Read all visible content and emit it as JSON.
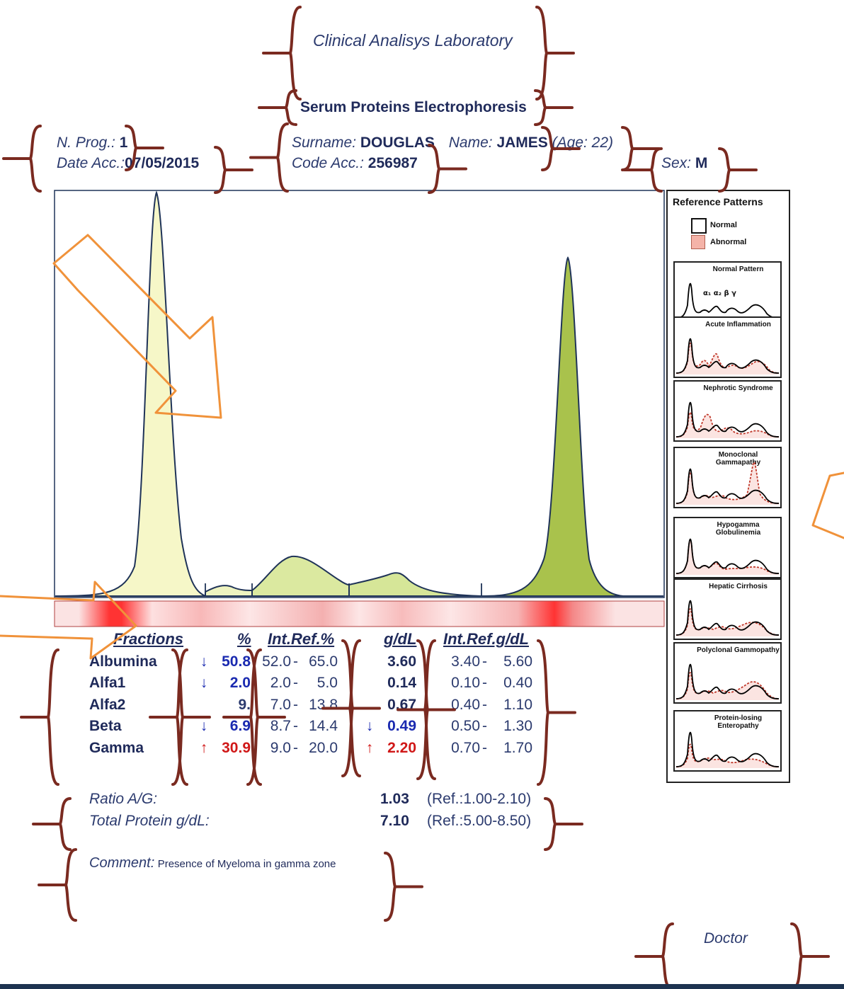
{
  "header": {
    "lab_name": "Clinical Analisys Laboratory",
    "test_title": "Serum Proteins Electrophoresis"
  },
  "patient": {
    "n_prog_label": "N. Prog.:",
    "n_prog_value": "1",
    "date_acc_label": "Date Acc.:",
    "date_acc_value": "07/05/2015",
    "surname_label": "Surname:",
    "surname_value": "DOUGLAS",
    "name_label": "Name:",
    "name_value": "JAMES",
    "age_text": "(Age: 22)",
    "code_acc_label": "Code Acc.:",
    "code_acc_value": "256987",
    "sex_label": "Sex:",
    "sex_value": "M"
  },
  "table": {
    "headers": [
      "Fractions",
      "%",
      "Int.Ref.%",
      "g/dL",
      "Int.Ref.g/dL"
    ],
    "rows": [
      {
        "name": "Albumina",
        "flag": "↓",
        "flag_color": "#1a2ab0",
        "pct": "50.8",
        "ref_pct_low": "52.0",
        "ref_pct_high": "65.0",
        "gdl_flag": "",
        "gdl": "3.60",
        "ref_gdl_low": "3.40",
        "ref_gdl_high": "5.60"
      },
      {
        "name": "Alfa1",
        "flag": "↓",
        "flag_color": "#1a2ab0",
        "pct": "2.0",
        "ref_pct_low": "2.0",
        "ref_pct_high": "5.0",
        "gdl_flag": "",
        "gdl": "0.14",
        "ref_gdl_low": "0.10",
        "ref_gdl_high": "0.40"
      },
      {
        "name": "Alfa2",
        "flag": "",
        "flag_color": "#2b3a6e",
        "pct": "9.",
        "ref_pct_low": "7.0",
        "ref_pct_high": "13.8",
        "gdl_flag": "",
        "gdl": "0.67",
        "ref_gdl_low": "0.40",
        "ref_gdl_high": "1.10"
      },
      {
        "name": "Beta",
        "flag": "↓",
        "flag_color": "#1a2ab0",
        "pct": "6.9",
        "ref_pct_low": "8.7",
        "ref_pct_high": "14.4",
        "gdl_flag": "↓",
        "gdl": "0.49",
        "ref_gdl_low": "0.50",
        "ref_gdl_high": "1.30"
      },
      {
        "name": "Gamma",
        "flag": "↑",
        "flag_color": "#d01818",
        "pct": "30.9",
        "ref_pct_low": "9.0",
        "ref_pct_high": "20.0",
        "gdl_flag": "↑",
        "gdl": "2.20",
        "ref_gdl_low": "0.70",
        "ref_gdl_high": "1.70"
      }
    ]
  },
  "summary": {
    "ratio_label": "Ratio A/G:",
    "ratio_value": "1.03",
    "ratio_ref": "(Ref.:1.00-2.10)",
    "total_label": "Total Protein g/dL:",
    "total_value": "7.10",
    "total_ref": "(Ref.:5.00-8.50)"
  },
  "comment": {
    "label": "Comment:",
    "text": "Presence of Myeloma in gamma zone"
  },
  "footer": {
    "doctor_label": "Doctor"
  },
  "reference_panel": {
    "title": "Reference Patterns",
    "legend_normal": "Normal",
    "legend_abnormal": "Abnormal",
    "patterns": [
      {
        "label": "Normal Pattern",
        "abnormal": false
      },
      {
        "label": "Acute Inflammation",
        "abnormal": true
      },
      {
        "label": "Nephrotic Syndrome",
        "abnormal": true
      },
      {
        "label": "Monoclonal Gammapathy",
        "abnormal": true
      },
      {
        "label": "Hypogamma Globulinemia",
        "abnormal": true
      },
      {
        "label": "Hepatic Cirrhosis",
        "abnormal": true
      },
      {
        "label": "Polyclonal Gammopathy",
        "abnormal": true
      },
      {
        "label": "Protein-losing Enteropathy",
        "abnormal": true
      }
    ],
    "normal_pattern_greek": "α₁ α₂  β    γ",
    "normal_color": "#000000",
    "abnormal_color": "#f4b3a8"
  },
  "colors": {
    "curve_outline": "#1f3358",
    "albumin_fill": "#f6f7c8",
    "alpha_beta_fill": "#dbe9a0",
    "gamma_fill": "#a9c24c",
    "band_red": "#e01010",
    "annotation_brace": "#7a2a20",
    "annotation_arrow": "#f0923a"
  },
  "chart_data": {
    "type": "line",
    "title": "",
    "xlabel": "",
    "ylabel": "",
    "series": [
      {
        "fractions": [
          "Albumina",
          "Alfa1",
          "Alfa2",
          "Beta",
          "Gamma"
        ],
        "values": [
          50.8,
          2.0,
          9.0,
          6.9,
          30.9
        ]
      }
    ],
    "grid": false
  }
}
